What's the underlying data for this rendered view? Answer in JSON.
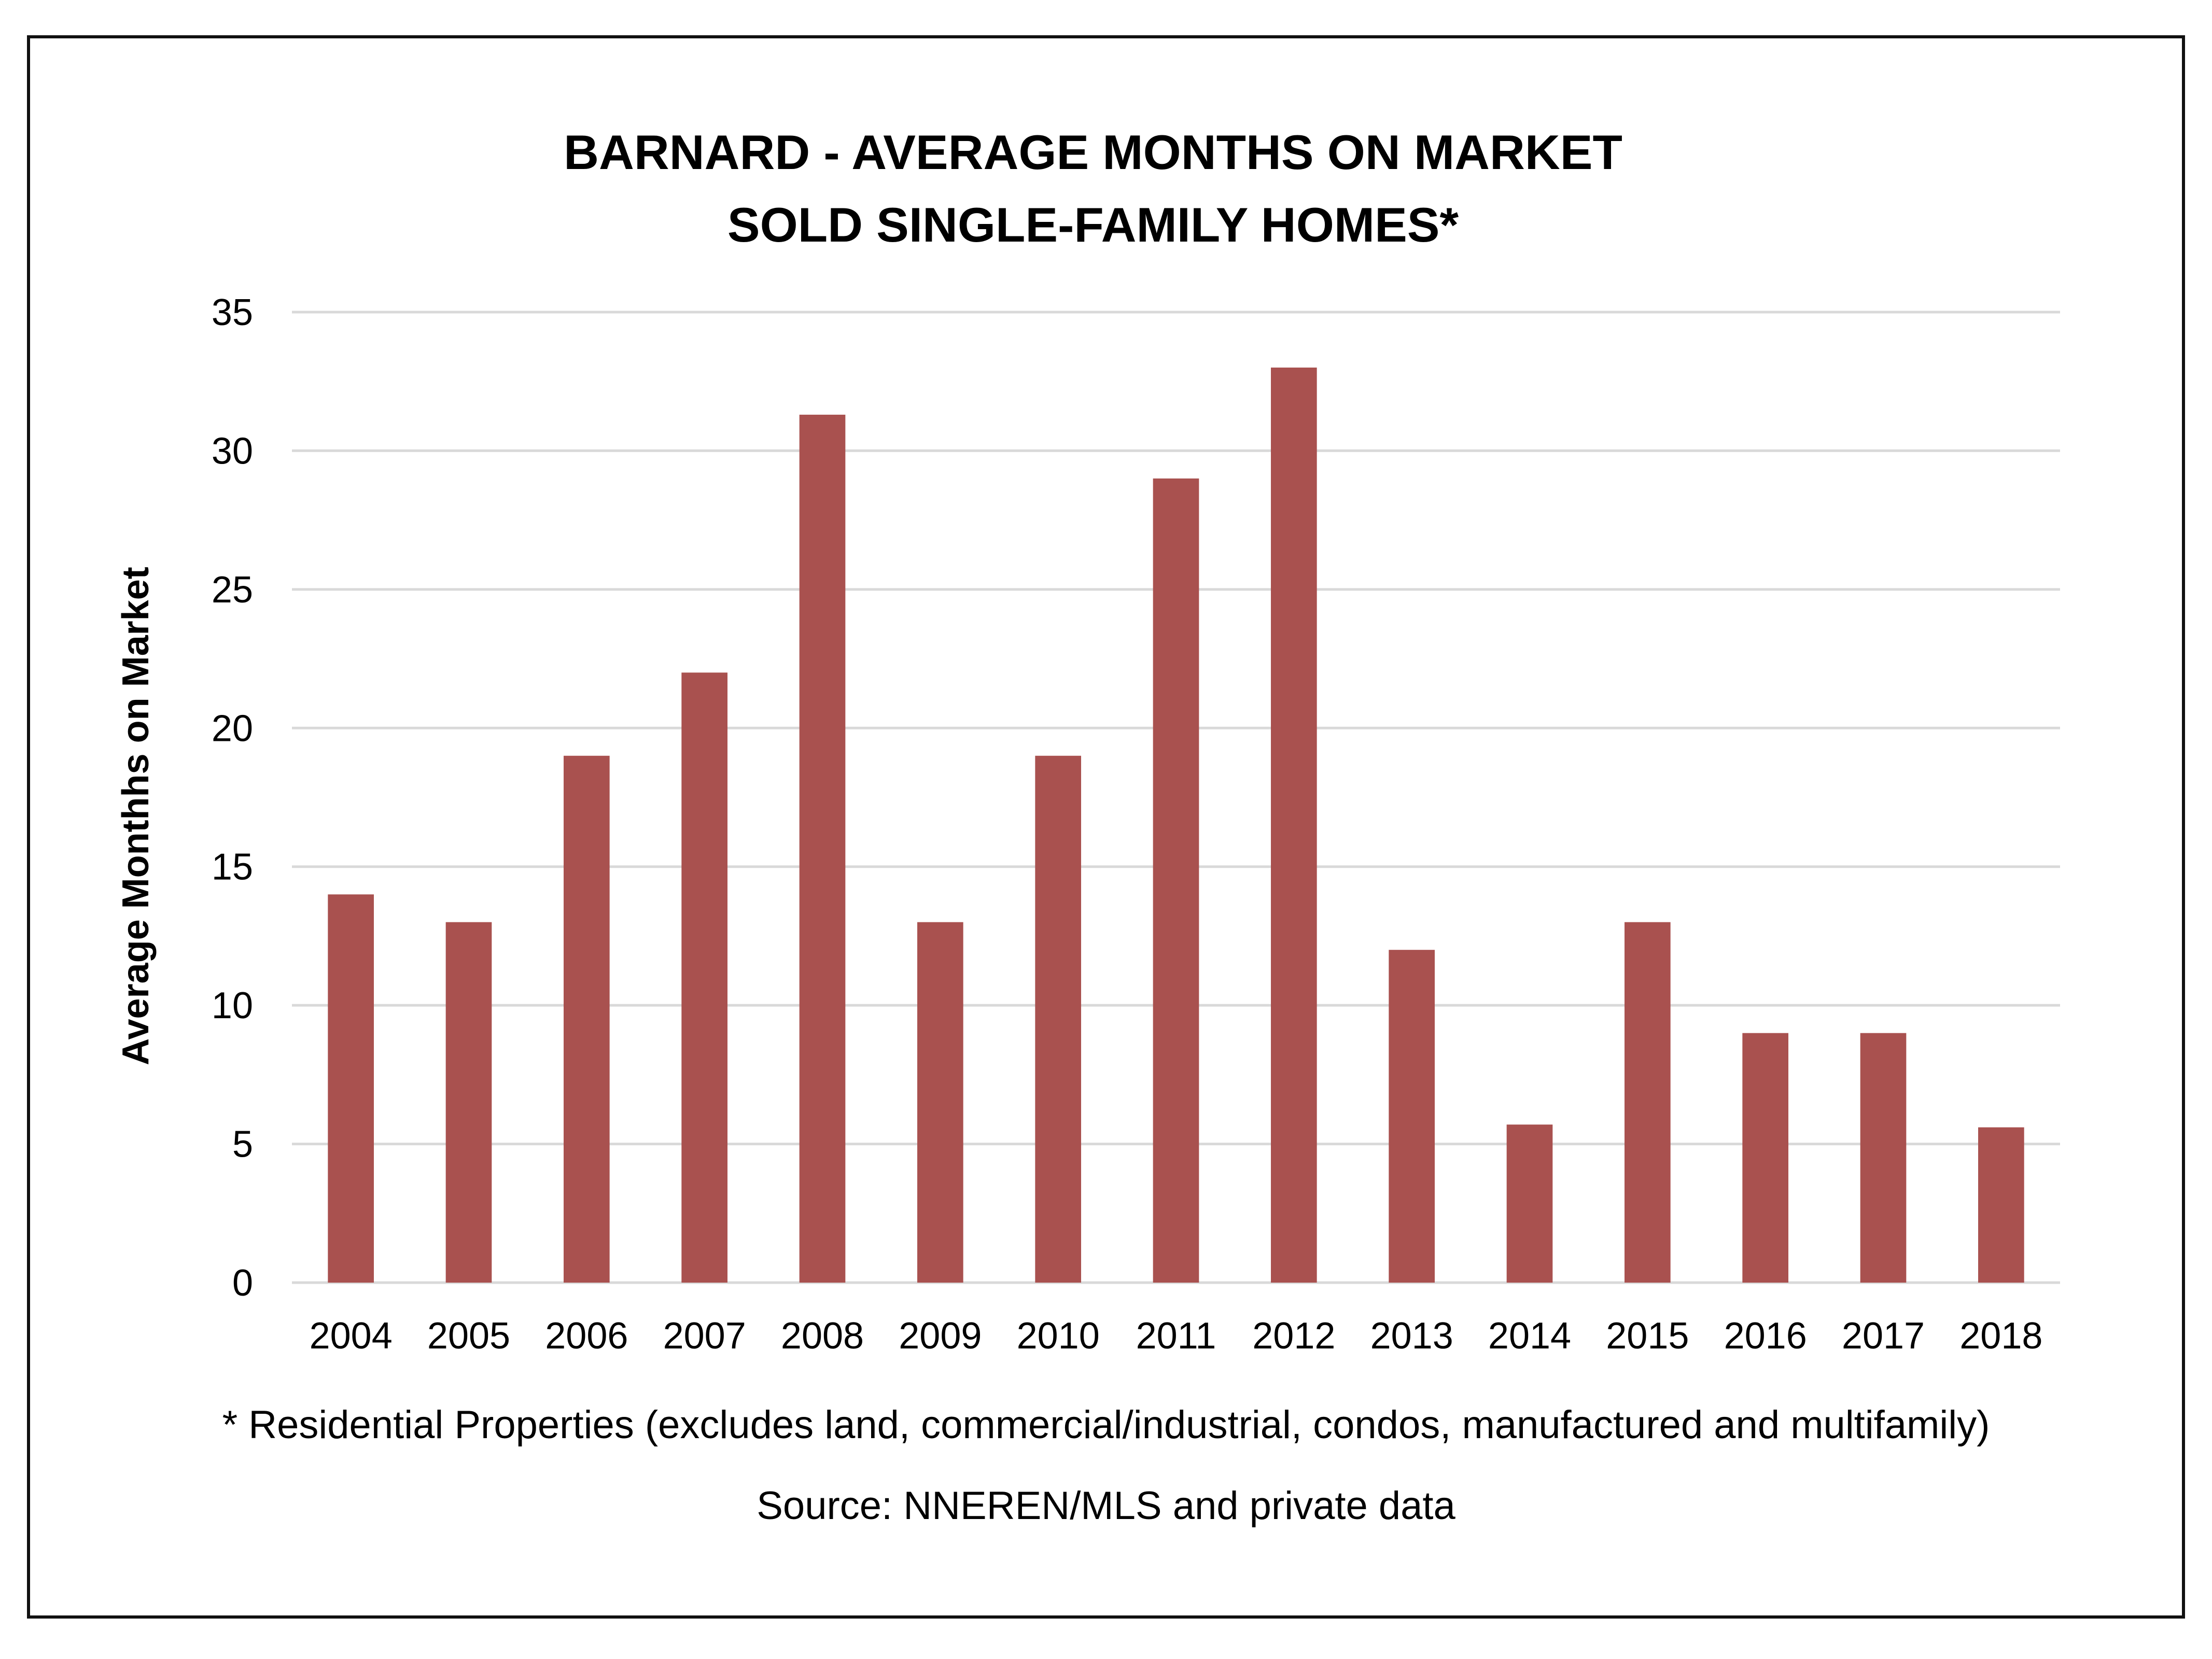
{
  "chart_data": {
    "type": "bar",
    "title": "BARNARD - AVERAGE MONTHS ON MARKET",
    "subtitle": "SOLD SINGLE-FAMILY HOMES*",
    "xlabel": "",
    "ylabel": "Average Monthhs on Market",
    "categories": [
      "2004",
      "2005",
      "2006",
      "2007",
      "2008",
      "2009",
      "2010",
      "2011",
      "2012",
      "2013",
      "2014",
      "2015",
      "2016",
      "2017",
      "2018"
    ],
    "values": [
      14,
      13,
      19,
      22,
      31.3,
      13,
      19,
      29,
      33,
      12,
      5.7,
      13,
      9,
      9,
      5.6
    ],
    "ylim": [
      0,
      35
    ],
    "yticks": [
      "0",
      "5",
      "10",
      "15",
      "20",
      "25",
      "30",
      "35"
    ],
    "ytick_values": [
      0,
      5,
      10,
      15,
      20,
      25,
      30,
      35
    ],
    "grid": true,
    "legend": "none",
    "bar_color": "#a9514f",
    "footnote": "* Residential Properties (excludes land, commercial/industrial, condos, manufactured and multifamily)",
    "source": "Source: NNEREN/MLS and private data"
  }
}
